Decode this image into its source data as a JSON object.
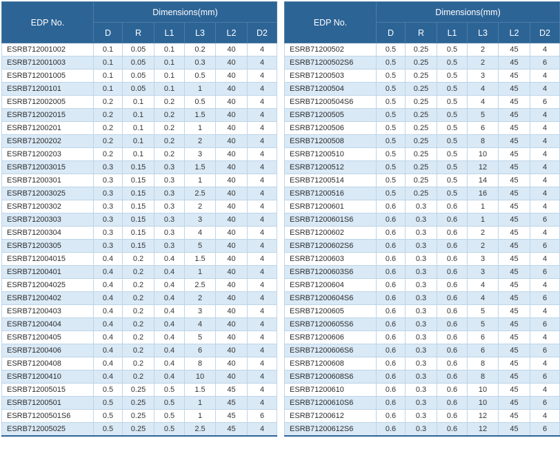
{
  "colors": {
    "header_bg": "#2d6496",
    "row_stripe": "#d9e9f6",
    "cell_border": "#bdd4e7",
    "bottom_rule": "#2b6295"
  },
  "tables": [
    {
      "edp_header": "EDP No.",
      "dims_header": "Dimensions(mm)",
      "columns": [
        "D",
        "R",
        "L1",
        "L3",
        "L2",
        "D2"
      ],
      "rows": [
        {
          "edp": "ESRB712001002",
          "values": [
            "0.1",
            "0.05",
            "0.1",
            "0.2",
            "40",
            "4"
          ]
        },
        {
          "edp": "ESRB712001003",
          "values": [
            "0.1",
            "0.05",
            "0.1",
            "0.3",
            "40",
            "4"
          ]
        },
        {
          "edp": "ESRB712001005",
          "values": [
            "0.1",
            "0.05",
            "0.1",
            "0.5",
            "40",
            "4"
          ]
        },
        {
          "edp": "ESRB71200101",
          "values": [
            "0.1",
            "0.05",
            "0.1",
            "1",
            "40",
            "4"
          ]
        },
        {
          "edp": "ESRB712002005",
          "values": [
            "0.2",
            "0.1",
            "0.2",
            "0.5",
            "40",
            "4"
          ]
        },
        {
          "edp": "ESRB712002015",
          "values": [
            "0.2",
            "0.1",
            "0.2",
            "1.5",
            "40",
            "4"
          ]
        },
        {
          "edp": "ESRB71200201",
          "values": [
            "0.2",
            "0.1",
            "0.2",
            "1",
            "40",
            "4"
          ]
        },
        {
          "edp": "ESRB71200202",
          "values": [
            "0.2",
            "0.1",
            "0.2",
            "2",
            "40",
            "4"
          ]
        },
        {
          "edp": "ESRB71200203",
          "values": [
            "0.2",
            "0.1",
            "0.2",
            "3",
            "40",
            "4"
          ]
        },
        {
          "edp": "ESRB712003015",
          "values": [
            "0.3",
            "0.15",
            "0.3",
            "1.5",
            "40",
            "4"
          ]
        },
        {
          "edp": "ESRB71200301",
          "values": [
            "0.3",
            "0.15",
            "0.3",
            "1",
            "40",
            "4"
          ]
        },
        {
          "edp": "ESRB712003025",
          "values": [
            "0.3",
            "0.15",
            "0.3",
            "2.5",
            "40",
            "4"
          ]
        },
        {
          "edp": "ESRB71200302",
          "values": [
            "0.3",
            "0.15",
            "0.3",
            "2",
            "40",
            "4"
          ]
        },
        {
          "edp": "ESRB71200303",
          "values": [
            "0.3",
            "0.15",
            "0.3",
            "3",
            "40",
            "4"
          ]
        },
        {
          "edp": "ESRB71200304",
          "values": [
            "0.3",
            "0.15",
            "0.3",
            "4",
            "40",
            "4"
          ]
        },
        {
          "edp": "ESRB71200305",
          "values": [
            "0.3",
            "0.15",
            "0.3",
            "5",
            "40",
            "4"
          ]
        },
        {
          "edp": "ESRB712004015",
          "values": [
            "0.4",
            "0.2",
            "0.4",
            "1.5",
            "40",
            "4"
          ]
        },
        {
          "edp": "ESRB71200401",
          "values": [
            "0.4",
            "0.2",
            "0.4",
            "1",
            "40",
            "4"
          ]
        },
        {
          "edp": "ESRB712004025",
          "values": [
            "0.4",
            "0.2",
            "0.4",
            "2.5",
            "40",
            "4"
          ]
        },
        {
          "edp": "ESRB71200402",
          "values": [
            "0.4",
            "0.2",
            "0.4",
            "2",
            "40",
            "4"
          ]
        },
        {
          "edp": "ESRB71200403",
          "values": [
            "0.4",
            "0.2",
            "0.4",
            "3",
            "40",
            "4"
          ]
        },
        {
          "edp": "ESRB71200404",
          "values": [
            "0.4",
            "0.2",
            "0.4",
            "4",
            "40",
            "4"
          ]
        },
        {
          "edp": "ESRB71200405",
          "values": [
            "0.4",
            "0.2",
            "0.4",
            "5",
            "40",
            "4"
          ]
        },
        {
          "edp": "ESRB71200406",
          "values": [
            "0.4",
            "0.2",
            "0.4",
            "6",
            "40",
            "4"
          ]
        },
        {
          "edp": "ESRB71200408",
          "values": [
            "0.4",
            "0.2",
            "0.4",
            "8",
            "40",
            "4"
          ]
        },
        {
          "edp": "ESRB71200410",
          "values": [
            "0.4",
            "0.2",
            "0.4",
            "10",
            "40",
            "4"
          ]
        },
        {
          "edp": "ESRB712005015",
          "values": [
            "0.5",
            "0.25",
            "0.5",
            "1.5",
            "45",
            "4"
          ]
        },
        {
          "edp": "ESRB71200501",
          "values": [
            "0.5",
            "0.25",
            "0.5",
            "1",
            "45",
            "4"
          ]
        },
        {
          "edp": "ESRB71200501S6",
          "values": [
            "0.5",
            "0.25",
            "0.5",
            "1",
            "45",
            "6"
          ]
        },
        {
          "edp": "ESRB712005025",
          "values": [
            "0.5",
            "0.25",
            "0.5",
            "2.5",
            "45",
            "4"
          ]
        }
      ]
    },
    {
      "edp_header": "EDP No.",
      "dims_header": "Dimensions(mm)",
      "columns": [
        "D",
        "R",
        "L1",
        "L3",
        "L2",
        "D2"
      ],
      "rows": [
        {
          "edp": "ESRB71200502",
          "values": [
            "0.5",
            "0.25",
            "0.5",
            "2",
            "45",
            "4"
          ]
        },
        {
          "edp": "ESRB71200502S6",
          "values": [
            "0.5",
            "0.25",
            "0.5",
            "2",
            "45",
            "6"
          ]
        },
        {
          "edp": "ESRB71200503",
          "values": [
            "0.5",
            "0.25",
            "0.5",
            "3",
            "45",
            "4"
          ]
        },
        {
          "edp": "ESRB71200504",
          "values": [
            "0.5",
            "0.25",
            "0.5",
            "4",
            "45",
            "4"
          ]
        },
        {
          "edp": "ESRB71200504S6",
          "values": [
            "0.5",
            "0.25",
            "0.5",
            "4",
            "45",
            "6"
          ]
        },
        {
          "edp": "ESRB71200505",
          "values": [
            "0.5",
            "0.25",
            "0.5",
            "5",
            "45",
            "4"
          ]
        },
        {
          "edp": "ESRB71200506",
          "values": [
            "0.5",
            "0.25",
            "0.5",
            "6",
            "45",
            "4"
          ]
        },
        {
          "edp": "ESRB71200508",
          "values": [
            "0.5",
            "0.25",
            "0.5",
            "8",
            "45",
            "4"
          ]
        },
        {
          "edp": "ESRB71200510",
          "values": [
            "0.5",
            "0.25",
            "0.5",
            "10",
            "45",
            "4"
          ]
        },
        {
          "edp": "ESRB71200512",
          "values": [
            "0.5",
            "0.25",
            "0.5",
            "12",
            "45",
            "4"
          ]
        },
        {
          "edp": "ESRB71200514",
          "values": [
            "0.5",
            "0.25",
            "0.5",
            "14",
            "45",
            "4"
          ]
        },
        {
          "edp": "ESRB71200516",
          "values": [
            "0.5",
            "0.25",
            "0.5",
            "16",
            "45",
            "4"
          ]
        },
        {
          "edp": "ESRB71200601",
          "values": [
            "0.6",
            "0.3",
            "0.6",
            "1",
            "45",
            "4"
          ]
        },
        {
          "edp": "ESRB71200601S6",
          "values": [
            "0.6",
            "0.3",
            "0.6",
            "1",
            "45",
            "6"
          ]
        },
        {
          "edp": "ESRB71200602",
          "values": [
            "0.6",
            "0.3",
            "0.6",
            "2",
            "45",
            "4"
          ]
        },
        {
          "edp": "ESRB71200602S6",
          "values": [
            "0.6",
            "0.3",
            "0.6",
            "2",
            "45",
            "6"
          ]
        },
        {
          "edp": "ESRB71200603",
          "values": [
            "0.6",
            "0.3",
            "0.6",
            "3",
            "45",
            "4"
          ]
        },
        {
          "edp": "ESRB71200603S6",
          "values": [
            "0.6",
            "0.3",
            "0.6",
            "3",
            "45",
            "6"
          ]
        },
        {
          "edp": "ESRB71200604",
          "values": [
            "0.6",
            "0.3",
            "0.6",
            "4",
            "45",
            "4"
          ]
        },
        {
          "edp": "ESRB71200604S6",
          "values": [
            "0.6",
            "0.3",
            "0.6",
            "4",
            "45",
            "6"
          ]
        },
        {
          "edp": "ESRB71200605",
          "values": [
            "0.6",
            "0.3",
            "0.6",
            "5",
            "45",
            "4"
          ]
        },
        {
          "edp": "ESRB71200605S6",
          "values": [
            "0.6",
            "0.3",
            "0.6",
            "5",
            "45",
            "6"
          ]
        },
        {
          "edp": "ESRB71200606",
          "values": [
            "0.6",
            "0.3",
            "0.6",
            "6",
            "45",
            "4"
          ]
        },
        {
          "edp": "ESRB71200606S6",
          "values": [
            "0.6",
            "0.3",
            "0.6",
            "6",
            "45",
            "6"
          ]
        },
        {
          "edp": "ESRB71200608",
          "values": [
            "0.6",
            "0.3",
            "0.6",
            "8",
            "45",
            "4"
          ]
        },
        {
          "edp": "ESRB71200608S6",
          "values": [
            "0.6",
            "0.3",
            "0.6",
            "8",
            "45",
            "6"
          ]
        },
        {
          "edp": "ESRB71200610",
          "values": [
            "0.6",
            "0.3",
            "0.6",
            "10",
            "45",
            "4"
          ]
        },
        {
          "edp": "ESRB71200610S6",
          "values": [
            "0.6",
            "0.3",
            "0.6",
            "10",
            "45",
            "6"
          ]
        },
        {
          "edp": "ESRB71200612",
          "values": [
            "0.6",
            "0.3",
            "0.6",
            "12",
            "45",
            "4"
          ]
        },
        {
          "edp": "ESRB71200612S6",
          "values": [
            "0.6",
            "0.3",
            "0.6",
            "12",
            "45",
            "6"
          ]
        }
      ]
    }
  ]
}
